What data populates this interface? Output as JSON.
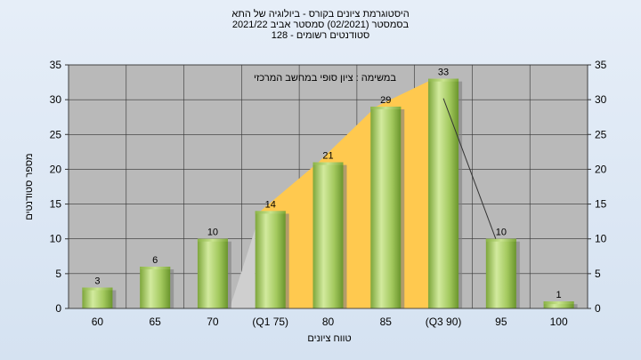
{
  "header": {
    "line1": "היסטוגרמת ציונים בקורס - ביולוגיה של התא",
    "line2": "בסמסטר  (02/2021)  סמסטר אביב 2021/22",
    "line3": "סטודנטים רשומים - 128"
  },
  "chart_data": {
    "type": "bar",
    "title": "היסטוגרמת ציונים בקורס - ביולוגיה של התא",
    "annotation": "במשימה : ציון סופי במחשב המרכזי",
    "xlabel": "טווח ציונים",
    "ylabel": "מספר סטודנטים",
    "categories": [
      "60",
      "65",
      "70",
      "(Q1 75)",
      "80",
      "85",
      "(Q3 90)",
      "95",
      "100"
    ],
    "values": [
      3,
      6,
      10,
      14,
      21,
      29,
      33,
      10,
      1
    ],
    "ylim": [
      0,
      35
    ],
    "yticks": [
      "0",
      "5",
      "10",
      "15",
      "20",
      "25",
      "30",
      "35"
    ],
    "grid": true,
    "colors": {
      "bar_light": "#cfe89a",
      "bar_mid": "#9dc35a",
      "bar_dark": "#6e9a2e",
      "plot_bg": "#b9b9b9",
      "iqr_fill": "#ffc94f"
    }
  }
}
